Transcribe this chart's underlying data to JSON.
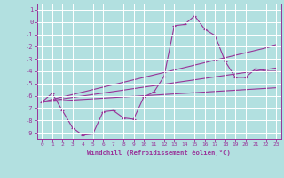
{
  "xlabel": "Windchill (Refroidissement éolien,°C)",
  "ylabel": "",
  "background_color": "#b2e0e0",
  "grid_color": "#ffffff",
  "line_color": "#993399",
  "xlim": [
    -0.5,
    23.5
  ],
  "ylim": [
    -9.5,
    1.5
  ],
  "xticks": [
    0,
    1,
    2,
    3,
    4,
    5,
    6,
    7,
    8,
    9,
    10,
    11,
    12,
    13,
    14,
    15,
    16,
    17,
    18,
    19,
    20,
    21,
    22,
    23
  ],
  "yticks": [
    1,
    0,
    -1,
    -2,
    -3,
    -4,
    -5,
    -6,
    -7,
    -8,
    -9
  ],
  "hours": [
    0,
    1,
    2,
    3,
    4,
    5,
    6,
    7,
    8,
    9,
    10,
    11,
    12,
    13,
    14,
    15,
    16,
    17,
    18,
    19,
    20,
    21,
    22,
    23
  ],
  "line1": [
    -6.5,
    -5.8,
    -7.2,
    -8.6,
    -9.2,
    -9.1,
    -7.3,
    -7.2,
    -7.8,
    -7.9,
    -6.1,
    -5.7,
    -4.4,
    -0.3,
    -0.2,
    0.5,
    -0.6,
    -1.1,
    -3.2,
    -4.5,
    -4.5,
    -3.8,
    -4.0,
    -4.0
  ],
  "line_straight1": [
    -6.5,
    -6.3,
    -6.1,
    -5.9,
    -5.7,
    -5.5,
    -5.3,
    -5.1,
    -4.9,
    -4.7,
    -4.5,
    -4.3,
    -4.1,
    -3.9,
    -3.7,
    -3.5,
    -3.3,
    -3.1,
    -2.9,
    -2.7,
    -2.5,
    -2.3,
    -2.1,
    -1.9
  ],
  "line_straight2": [
    -6.5,
    -6.38,
    -6.26,
    -6.14,
    -6.02,
    -5.9,
    -5.78,
    -5.66,
    -5.54,
    -5.42,
    -5.3,
    -5.18,
    -5.06,
    -4.94,
    -4.82,
    -4.7,
    -4.58,
    -4.46,
    -4.34,
    -4.22,
    -4.1,
    -3.98,
    -3.86,
    -3.74
  ],
  "line_straight3": [
    -6.5,
    -6.45,
    -6.4,
    -6.35,
    -6.3,
    -6.25,
    -6.2,
    -6.15,
    -6.1,
    -6.05,
    -6.0,
    -5.95,
    -5.9,
    -5.85,
    -5.8,
    -5.75,
    -5.7,
    -5.65,
    -5.6,
    -5.55,
    -5.5,
    -5.45,
    -5.4,
    -5.35
  ]
}
